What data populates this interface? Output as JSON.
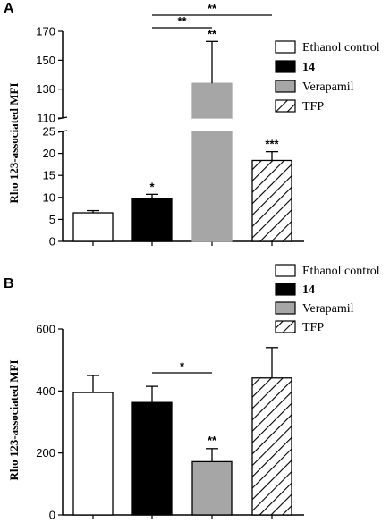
{
  "chart_data": [
    {
      "panel": "A",
      "type": "bar",
      "ylabel": "Rho 123-associated MFI",
      "y_axis_break": true,
      "ylim_lower": [
        0,
        25
      ],
      "ylim_upper": [
        110,
        170
      ],
      "yticks_lower": [
        "0",
        "5",
        "10",
        "15",
        "20",
        "25"
      ],
      "yticks_upper": [
        "110",
        "130",
        "150",
        "170"
      ],
      "categories": [
        "Ethanol control",
        "14",
        "Verapamil",
        "TFP"
      ],
      "legend_bold": [
        false,
        true,
        false,
        false
      ],
      "legend_position": "top-right",
      "values": [
        6.5,
        9.8,
        134,
        18.4
      ],
      "errors": [
        0.5,
        0.9,
        29,
        2.0
      ],
      "fills": [
        "white",
        "black",
        "grey",
        "hatch"
      ],
      "bar_stars": [
        "",
        "*",
        "**",
        "***"
      ],
      "brackets": [
        {
          "from": 1,
          "to": 3,
          "label": "**"
        },
        {
          "from": 1,
          "to": 2,
          "label": "**"
        }
      ]
    },
    {
      "panel": "B",
      "type": "bar",
      "ylabel": "Rho 123-associated MFI",
      "ylim": [
        0,
        600
      ],
      "yticks": [
        "0",
        "200",
        "400",
        "600"
      ],
      "categories": [
        "Ethanol control",
        "14",
        "Verapamil",
        "TFP"
      ],
      "legend_bold": [
        false,
        true,
        false,
        false
      ],
      "legend_position": "top-right",
      "values": [
        395,
        363,
        172,
        442
      ],
      "errors": [
        55,
        52,
        42,
        98
      ],
      "fills": [
        "white",
        "black",
        "grey",
        "hatch"
      ],
      "bar_stars": [
        "",
        "",
        "**",
        ""
      ],
      "brackets": [
        {
          "from": 1,
          "to": 2,
          "label": "*"
        }
      ]
    }
  ],
  "colors": {
    "grey": "#a6a6a6",
    "black": "#000000",
    "white": "#ffffff"
  }
}
